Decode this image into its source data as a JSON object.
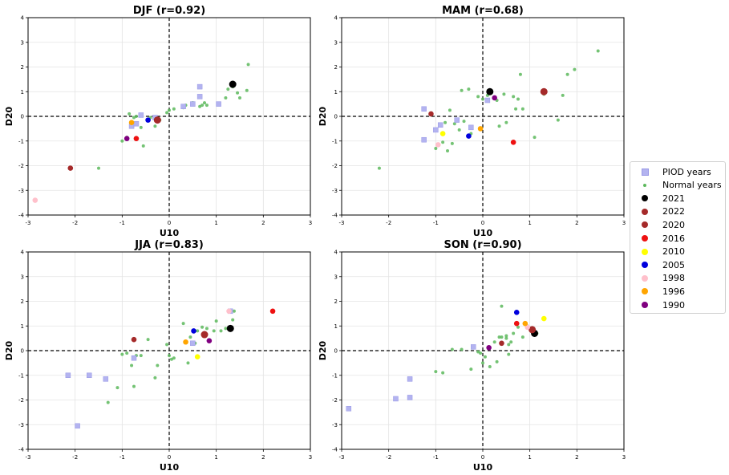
{
  "chart_data": {
    "type": "scatter",
    "xlim": [
      -3,
      3
    ],
    "ylim": [
      -4,
      4
    ],
    "xticks": [
      "-3",
      "-2",
      "-1",
      "0",
      "1",
      "2",
      "3"
    ],
    "yticks": [
      "-4",
      "-3",
      "-2",
      "-1",
      "0",
      "1",
      "2",
      "3",
      "4"
    ],
    "grid": true,
    "legend_placement": "right",
    "legend": [
      {
        "label": "PIOD years",
        "marker": "square",
        "color": "#b3b3f0"
      },
      {
        "label": "Normal years",
        "marker": "circle-small",
        "color": "#5cb85c"
      },
      {
        "label": "2021",
        "marker": "circle",
        "color": "#000000"
      },
      {
        "label": "2022",
        "marker": "circle",
        "color": "#a52a2a"
      },
      {
        "label": "2020",
        "marker": "circle",
        "color": "#a52a2a"
      },
      {
        "label": "2016",
        "marker": "circle",
        "color": "#ee1111"
      },
      {
        "label": "2010",
        "marker": "circle",
        "color": "#ffff00"
      },
      {
        "label": "2005",
        "marker": "circle",
        "color": "#0000dd"
      },
      {
        "label": "1998",
        "marker": "circle",
        "color": "#ffc0cb"
      },
      {
        "label": "1996",
        "marker": "circle",
        "color": "#ffa500"
      },
      {
        "label": "1990",
        "marker": "circle",
        "color": "#800080"
      }
    ],
    "panels": [
      {
        "title": "DJF (r=0.92)",
        "xlabel": "U10",
        "ylabel": "D20",
        "piod": [
          [
            -0.8,
            -0.4
          ],
          [
            -0.7,
            -0.3
          ],
          [
            -0.6,
            0.05
          ],
          [
            -0.3,
            -0.05
          ],
          [
            0.3,
            0.4
          ],
          [
            0.5,
            0.5
          ],
          [
            0.65,
            1.2
          ],
          [
            0.65,
            0.8
          ],
          [
            1.05,
            0.5
          ]
        ],
        "normal": [
          [
            -1.5,
            -2.1
          ],
          [
            -1.0,
            -1.0
          ],
          [
            -0.9,
            -0.85
          ],
          [
            -0.85,
            0.1
          ],
          [
            -0.75,
            -0.05
          ],
          [
            -0.7,
            0.0
          ],
          [
            -0.6,
            -0.45
          ],
          [
            -0.55,
            -1.2
          ],
          [
            -0.4,
            -0.05
          ],
          [
            -0.3,
            -0.4
          ],
          [
            -0.2,
            -0.15
          ],
          [
            -0.05,
            0.15
          ],
          [
            0.0,
            0.25
          ],
          [
            0.1,
            0.3
          ],
          [
            0.3,
            0.35
          ],
          [
            0.35,
            0.45
          ],
          [
            0.5,
            0.55
          ],
          [
            0.65,
            0.4
          ],
          [
            0.7,
            0.45
          ],
          [
            0.75,
            0.55
          ],
          [
            0.8,
            0.45
          ],
          [
            1.2,
            0.75
          ],
          [
            1.25,
            1.1
          ],
          [
            1.35,
            1.2
          ],
          [
            1.45,
            0.95
          ],
          [
            1.5,
            0.75
          ],
          [
            1.65,
            1.05
          ],
          [
            1.68,
            2.1
          ]
        ],
        "years": [
          {
            "year": "2021",
            "x": 1.35,
            "y": 1.3
          },
          {
            "year": "2022",
            "x": -0.25,
            "y": -0.15
          },
          {
            "year": "2020",
            "x": -2.1,
            "y": -2.1
          },
          {
            "year": "2016",
            "x": -0.7,
            "y": -0.9
          },
          {
            "year": "2005",
            "x": -0.45,
            "y": -0.15
          },
          {
            "year": "1998",
            "x": -2.85,
            "y": -3.4
          },
          {
            "year": "1996",
            "x": -0.8,
            "y": -0.25
          },
          {
            "year": "1990",
            "x": -0.9,
            "y": -0.9
          }
        ]
      },
      {
        "title": "MAM (r=0.68)",
        "xlabel": "U10",
        "ylabel": "D20",
        "piod": [
          [
            -1.25,
            0.3
          ],
          [
            -1.25,
            -0.95
          ],
          [
            -1.0,
            -0.55
          ],
          [
            -0.9,
            -0.35
          ],
          [
            -0.55,
            -0.15
          ],
          [
            -0.25,
            -0.45
          ],
          [
            0.1,
            0.65
          ]
        ],
        "normal": [
          [
            -2.2,
            -2.1
          ],
          [
            -1.0,
            -1.3
          ],
          [
            -0.85,
            -1.05
          ],
          [
            -0.8,
            -0.25
          ],
          [
            -0.75,
            -1.4
          ],
          [
            -0.7,
            0.25
          ],
          [
            -0.65,
            -1.1
          ],
          [
            -0.6,
            -0.3
          ],
          [
            -0.5,
            -0.55
          ],
          [
            -0.45,
            1.05
          ],
          [
            -0.4,
            -0.2
          ],
          [
            -0.3,
            1.1
          ],
          [
            -0.25,
            -0.7
          ],
          [
            -0.1,
            0.8
          ],
          [
            0.0,
            0.7
          ],
          [
            0.1,
            0.85
          ],
          [
            0.3,
            0.65
          ],
          [
            0.35,
            -0.4
          ],
          [
            0.45,
            0.9
          ],
          [
            0.5,
            -0.25
          ],
          [
            0.65,
            0.8
          ],
          [
            0.7,
            0.3
          ],
          [
            0.75,
            0.7
          ],
          [
            0.8,
            1.7
          ],
          [
            0.85,
            0.3
          ],
          [
            1.1,
            -0.85
          ],
          [
            1.3,
            0.9
          ],
          [
            1.6,
            -0.15
          ],
          [
            1.7,
            0.85
          ],
          [
            1.8,
            1.7
          ],
          [
            1.95,
            1.9
          ],
          [
            2.45,
            2.65
          ]
        ],
        "years": [
          {
            "year": "2021",
            "x": 0.15,
            "y": 1.0
          },
          {
            "year": "2022",
            "x": 1.3,
            "y": 1.0
          },
          {
            "year": "2020",
            "x": -1.1,
            "y": 0.1
          },
          {
            "year": "2016",
            "x": 0.65,
            "y": -1.05
          },
          {
            "year": "2010",
            "x": -0.85,
            "y": -0.7
          },
          {
            "year": "2005",
            "x": -0.3,
            "y": -0.8
          },
          {
            "year": "1998",
            "x": -0.95,
            "y": -1.15
          },
          {
            "year": "1996",
            "x": -0.05,
            "y": -0.5
          },
          {
            "year": "1990",
            "x": 0.25,
            "y": 0.75
          }
        ]
      },
      {
        "title": "JJA (r=0.83)",
        "xlabel": "U10",
        "ylabel": "D20",
        "piod": [
          [
            -2.15,
            -1.0
          ],
          [
            -1.95,
            -3.05
          ],
          [
            -1.7,
            -1.0
          ],
          [
            -1.35,
            -1.15
          ],
          [
            -0.75,
            -0.3
          ],
          [
            0.5,
            0.3
          ],
          [
            1.3,
            1.6
          ]
        ],
        "normal": [
          [
            -1.3,
            -2.1
          ],
          [
            -1.1,
            -1.5
          ],
          [
            -1.0,
            -0.15
          ],
          [
            -0.9,
            -0.1
          ],
          [
            -0.8,
            -0.6
          ],
          [
            -0.75,
            -1.45
          ],
          [
            -0.7,
            -0.2
          ],
          [
            -0.6,
            -0.2
          ],
          [
            -0.45,
            0.45
          ],
          [
            -0.3,
            -1.1
          ],
          [
            -0.25,
            -0.6
          ],
          [
            -0.05,
            0.25
          ],
          [
            0.0,
            -0.2
          ],
          [
            0.05,
            -0.35
          ],
          [
            0.1,
            -0.3
          ],
          [
            0.3,
            1.1
          ],
          [
            0.35,
            0.35
          ],
          [
            0.4,
            -0.5
          ],
          [
            0.45,
            0.55
          ],
          [
            0.55,
            0.3
          ],
          [
            0.6,
            0.8
          ],
          [
            0.7,
            0.95
          ],
          [
            0.8,
            0.9
          ],
          [
            0.95,
            0.8
          ],
          [
            1.0,
            1.2
          ],
          [
            1.1,
            0.8
          ],
          [
            1.2,
            0.9
          ],
          [
            1.35,
            1.25
          ],
          [
            1.38,
            1.6
          ]
        ],
        "years": [
          {
            "year": "2021",
            "x": 1.3,
            "y": 0.9
          },
          {
            "year": "2022",
            "x": 0.75,
            "y": 0.65
          },
          {
            "year": "2020",
            "x": -0.75,
            "y": 0.45
          },
          {
            "year": "2016",
            "x": 2.2,
            "y": 1.6
          },
          {
            "year": "2010",
            "x": 0.6,
            "y": -0.25
          },
          {
            "year": "2005",
            "x": 0.52,
            "y": 0.8
          },
          {
            "year": "1998",
            "x": 1.27,
            "y": 1.6
          },
          {
            "year": "1996",
            "x": 0.35,
            "y": 0.35
          },
          {
            "year": "1990",
            "x": 0.85,
            "y": 0.4
          }
        ]
      },
      {
        "title": "SON (r=0.90)",
        "xlabel": "U10",
        "ylabel": "D20",
        "piod": [
          [
            -2.85,
            -2.35
          ],
          [
            -1.85,
            -1.95
          ],
          [
            -1.55,
            -1.9
          ],
          [
            -1.55,
            -1.15
          ],
          [
            -0.2,
            0.15
          ]
        ],
        "normal": [
          [
            -1.0,
            -0.85
          ],
          [
            -0.85,
            -0.9
          ],
          [
            -0.65,
            0.05
          ],
          [
            -0.45,
            0.05
          ],
          [
            -0.25,
            -0.75
          ],
          [
            -0.1,
            -0.05
          ],
          [
            -0.05,
            -0.1
          ],
          [
            0.0,
            -0.5
          ],
          [
            0.05,
            -0.25
          ],
          [
            0.15,
            -0.65
          ],
          [
            0.25,
            0.35
          ],
          [
            0.3,
            -0.45
          ],
          [
            0.35,
            0.55
          ],
          [
            0.4,
            0.55
          ],
          [
            0.4,
            1.8
          ],
          [
            0.5,
            0.5
          ],
          [
            0.5,
            0.6
          ],
          [
            0.55,
            -0.15
          ],
          [
            0.55,
            0.25
          ],
          [
            0.6,
            0.35
          ],
          [
            0.65,
            0.7
          ],
          [
            0.75,
            0.95
          ],
          [
            0.85,
            0.55
          ],
          [
            0.95,
            1.0
          ],
          [
            1.05,
            0.85
          ],
          [
            1.15,
            0.7
          ]
        ],
        "years": [
          {
            "year": "2021",
            "x": 1.1,
            "y": 0.7
          },
          {
            "year": "2022",
            "x": 1.05,
            "y": 0.85
          },
          {
            "year": "2020",
            "x": 0.4,
            "y": 0.3
          },
          {
            "year": "2016",
            "x": 0.72,
            "y": 1.1
          },
          {
            "year": "2010",
            "x": 1.3,
            "y": 1.3
          },
          {
            "year": "2005",
            "x": 0.72,
            "y": 1.55
          },
          {
            "year": "1998",
            "x": 0.95,
            "y": 0.95
          },
          {
            "year": "1996",
            "x": 0.9,
            "y": 1.1
          },
          {
            "year": "1990",
            "x": 0.13,
            "y": 0.12
          }
        ]
      }
    ]
  }
}
